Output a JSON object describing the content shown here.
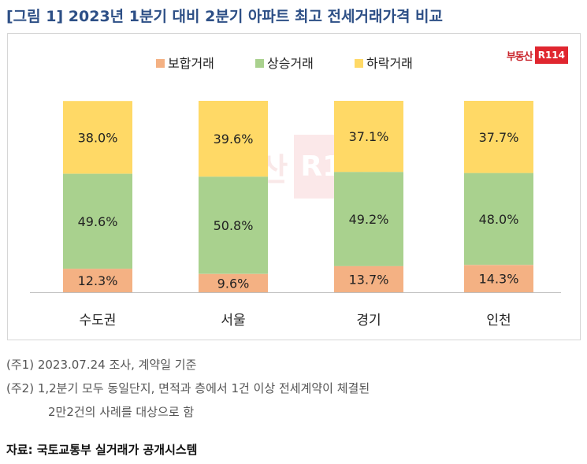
{
  "title": "[그림 1] 2023년 1분기 대비 2분기 아파트 최고 전세거래가격 비교",
  "brand": {
    "text": "부동산",
    "box": "R114"
  },
  "colors": {
    "title": "#2d4f86",
    "boHap": "#f4b183",
    "sangSeung": "#a9d18e",
    "haRak": "#ffd966"
  },
  "chart_data": {
    "type": "bar",
    "stacked": true,
    "categories": [
      "수도권",
      "서울",
      "경기",
      "인천"
    ],
    "series": [
      {
        "name": "보합거래",
        "values": [
          12.3,
          9.6,
          13.7,
          14.3
        ],
        "labels": [
          "12.3%",
          "9.6%",
          "13.7%",
          "14.3%"
        ]
      },
      {
        "name": "상승거래",
        "values": [
          49.6,
          50.8,
          49.2,
          48.0
        ],
        "labels": [
          "49.6%",
          "50.8%",
          "49.2%",
          "48.0%"
        ]
      },
      {
        "name": "하락거래",
        "values": [
          38.0,
          39.6,
          37.1,
          37.7
        ],
        "labels": [
          "38.0%",
          "39.6%",
          "37.1%",
          "37.7%"
        ]
      }
    ],
    "ylim": [
      0,
      100
    ],
    "legend": "top",
    "grid": false
  },
  "notes": [
    "(주1) 2023.07.24 조사, 계약일 기준",
    "(주2) 1,2분기 모두 동일단지, 면적과 층에서 1건 이상 전세계약이 체결된",
    "2만2건의 사례를 대상으로 함"
  ],
  "source": "자료: 국토교통부 실거래가 공개시스템"
}
